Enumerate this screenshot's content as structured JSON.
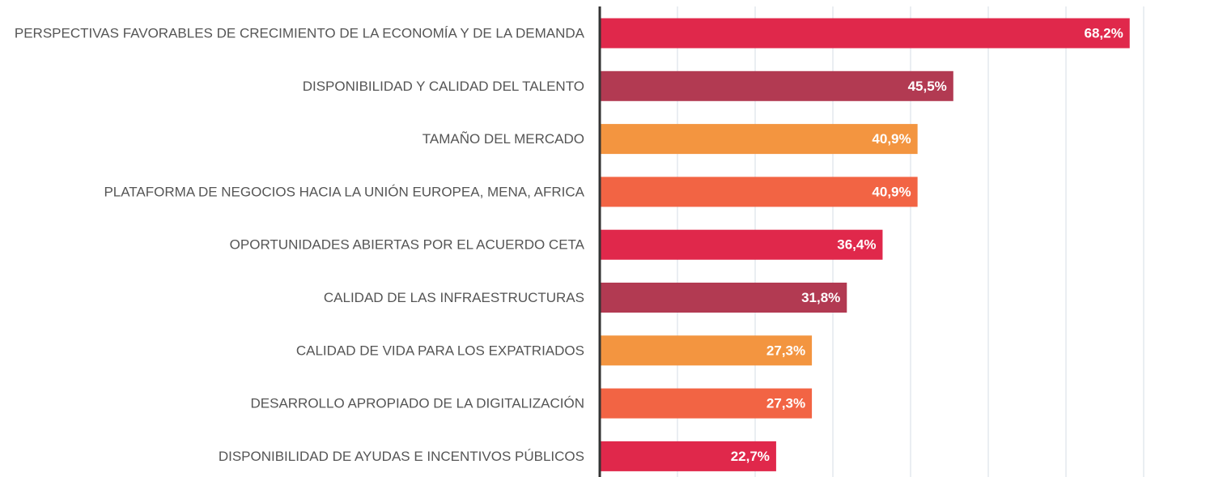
{
  "chart_data": {
    "type": "bar",
    "orientation": "horizontal",
    "categories": [
      "PERSPECTIVAS FAVORABLES DE CRECIMIENTO DE LA ECONOMÍA Y DE LA DEMANDA",
      "DISPONIBILIDAD Y CALIDAD DEL TALENTO",
      "TAMAÑO DEL MERCADO",
      "PLATAFORMA DE NEGOCIOS HACIA LA UNIÓN EUROPEA, MENA, AFRICA",
      "OPORTUNIDADES ABIERTAS POR EL ACUERDO CETA",
      "CALIDAD DE LAS INFRAESTRUCTURAS",
      "CALIDAD DE VIDA PARA LOS EXPATRIADOS",
      "DESARROLLO APROPIADO DE LA DIGITALIZACIÓN",
      "DISPONIBILIDAD DE AYUDAS E INCENTIVOS PÚBLICOS"
    ],
    "values": [
      68.2,
      45.5,
      40.9,
      40.9,
      36.4,
      31.8,
      27.3,
      27.3,
      22.7
    ],
    "value_labels": [
      "68,2%",
      "45,5%",
      "40,9%",
      "40,9%",
      "36,4%",
      "31,8%",
      "27,3%",
      "27,3%",
      "22,7%"
    ],
    "colors": [
      "#e0284b",
      "#b23a52",
      "#f39540",
      "#f26444",
      "#e0284b",
      "#b23a52",
      "#f39540",
      "#f26444",
      "#e0284b"
    ],
    "xlim": [
      0,
      70
    ],
    "xticks": [
      10,
      20,
      30,
      40,
      50,
      60,
      70
    ],
    "grid": true
  }
}
